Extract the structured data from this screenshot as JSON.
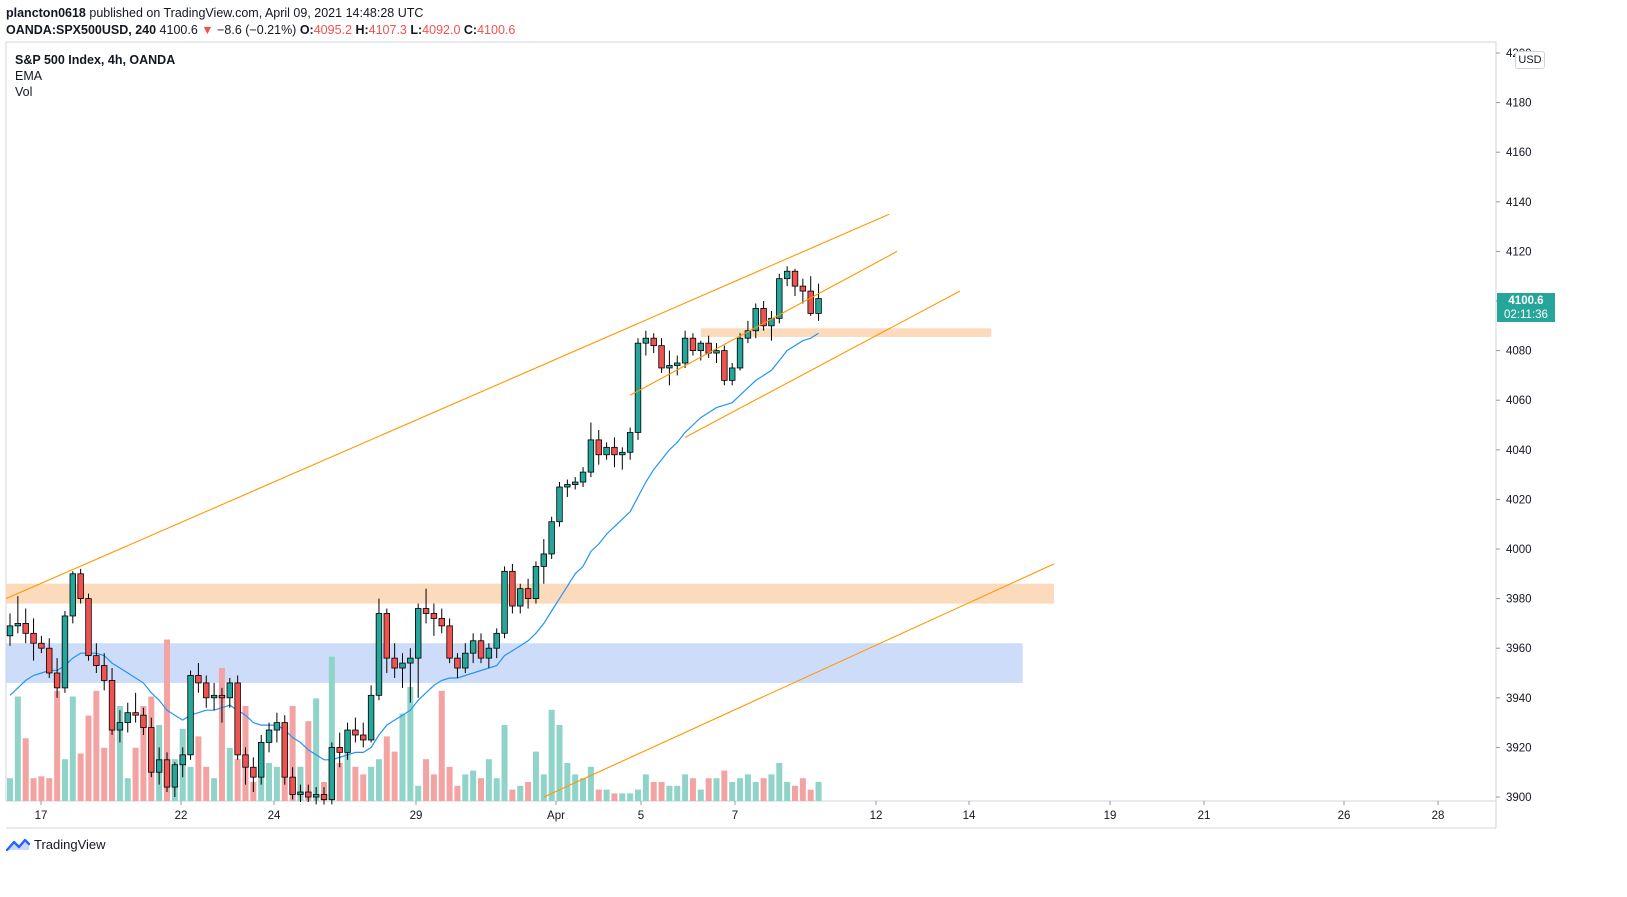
{
  "header": {
    "publisher_line": "plancton0618 published on TradingView.com, April 09, 2021 14:48:28 UTC",
    "publisher": "plancton0618",
    "symbol": "OANDA:SPX500USD, 240",
    "last": "4100.6",
    "change": "−8.6 (−0.21%)",
    "open_label": "O:",
    "open": "4095.2",
    "high_label": "H:",
    "high": "4107.3",
    "low_label": "L:",
    "low": "4092.0",
    "close_label": "C:",
    "close": "4100.6"
  },
  "legend": {
    "title": "S&P 500 Index, 4h, OANDA",
    "ema": "EMA",
    "vol": "Vol"
  },
  "price_axis": {
    "currency": "USD",
    "current_price": "4100.6",
    "countdown": "02:11:36"
  },
  "footer": {
    "brand": "TradingView"
  },
  "colors": {
    "up": "#26a69a",
    "down": "#ef5350",
    "vol_up": "#8fd3c9",
    "vol_down": "#f4a3a3",
    "ema": "#2196f3",
    "trendline": "#ff9800",
    "supply_zone": "#fbd5b1",
    "demand_zone": "#bcd2f7",
    "grid_axis": "#d1d4dc"
  },
  "chart_data": {
    "type": "candlestick",
    "symbol": "OANDA:SPX500USD",
    "timeframe": "240",
    "y_axis": {
      "ticks": [
        3900,
        3920,
        3940,
        3960,
        3980,
        4000,
        4020,
        4040,
        4060,
        4080,
        4100,
        4120,
        4140,
        4160,
        4180,
        4200
      ],
      "range": [
        3898,
        4202
      ],
      "side": "right"
    },
    "x_axis": {
      "tick_labels": [
        "17",
        "22",
        "24",
        "29",
        "Apr",
        "5",
        "7",
        "12",
        "14",
        "19",
        "21",
        "26",
        "28"
      ]
    },
    "candles": [
      {
        "o": 3965,
        "h": 3974,
        "l": 3961,
        "c": 3969
      },
      {
        "o": 3969,
        "h": 3981,
        "l": 3966,
        "c": 3970
      },
      {
        "o": 3970,
        "h": 3976,
        "l": 3962,
        "c": 3966
      },
      {
        "o": 3966,
        "h": 3972,
        "l": 3955,
        "c": 3962
      },
      {
        "o": 3962,
        "h": 3965,
        "l": 3958,
        "c": 3960
      },
      {
        "o": 3960,
        "h": 3964,
        "l": 3948,
        "c": 3950
      },
      {
        "o": 3950,
        "h": 3956,
        "l": 3940,
        "c": 3944
      },
      {
        "o": 3944,
        "h": 3975,
        "l": 3942,
        "c": 3973
      },
      {
        "o": 3973,
        "h": 3991,
        "l": 3970,
        "c": 3990
      },
      {
        "o": 3990,
        "h": 3992,
        "l": 3978,
        "c": 3980
      },
      {
        "o": 3980,
        "h": 3982,
        "l": 3955,
        "c": 3957
      },
      {
        "o": 3957,
        "h": 3962,
        "l": 3950,
        "c": 3953
      },
      {
        "o": 3953,
        "h": 3958,
        "l": 3943,
        "c": 3947
      },
      {
        "o": 3947,
        "h": 3952,
        "l": 3925,
        "c": 3927
      },
      {
        "o": 3927,
        "h": 3935,
        "l": 3922,
        "c": 3930
      },
      {
        "o": 3930,
        "h": 3938,
        "l": 3926,
        "c": 3934
      },
      {
        "o": 3934,
        "h": 3942,
        "l": 3930,
        "c": 3933
      },
      {
        "o": 3933,
        "h": 3936,
        "l": 3925,
        "c": 3928
      },
      {
        "o": 3928,
        "h": 3932,
        "l": 3908,
        "c": 3910
      },
      {
        "o": 3910,
        "h": 3920,
        "l": 3905,
        "c": 3915
      },
      {
        "o": 3915,
        "h": 3918,
        "l": 3902,
        "c": 3904
      },
      {
        "o": 3904,
        "h": 3914,
        "l": 3900,
        "c": 3913
      },
      {
        "o": 3913,
        "h": 3920,
        "l": 3908,
        "c": 3917
      },
      {
        "o": 3917,
        "h": 3951,
        "l": 3915,
        "c": 3949
      },
      {
        "o": 3949,
        "h": 3954,
        "l": 3942,
        "c": 3946
      },
      {
        "o": 3946,
        "h": 3949,
        "l": 3936,
        "c": 3940
      },
      {
        "o": 3940,
        "h": 3946,
        "l": 3935,
        "c": 3941
      },
      {
        "o": 3941,
        "h": 3944,
        "l": 3930,
        "c": 3940
      },
      {
        "o": 3940,
        "h": 3948,
        "l": 3936,
        "c": 3946
      },
      {
        "o": 3946,
        "h": 3949,
        "l": 3915,
        "c": 3917
      },
      {
        "o": 3917,
        "h": 3920,
        "l": 3905,
        "c": 3912
      },
      {
        "o": 3912,
        "h": 3916,
        "l": 3902,
        "c": 3908
      },
      {
        "o": 3908,
        "h": 3925,
        "l": 3905,
        "c": 3922
      },
      {
        "o": 3922,
        "h": 3930,
        "l": 3918,
        "c": 3927
      },
      {
        "o": 3927,
        "h": 3934,
        "l": 3922,
        "c": 3930
      },
      {
        "o": 3930,
        "h": 3933,
        "l": 3905,
        "c": 3908
      },
      {
        "o": 3908,
        "h": 3912,
        "l": 3899,
        "c": 3901
      },
      {
        "o": 3901,
        "h": 3905,
        "l": 3898,
        "c": 3902
      },
      {
        "o": 3902,
        "h": 3905,
        "l": 3898,
        "c": 3900
      },
      {
        "o": 3900,
        "h": 3904,
        "l": 3897,
        "c": 3901
      },
      {
        "o": 3901,
        "h": 3904,
        "l": 3897,
        "c": 3899
      },
      {
        "o": 3899,
        "h": 3922,
        "l": 3897,
        "c": 3920
      },
      {
        "o": 3920,
        "h": 3926,
        "l": 3912,
        "c": 3918
      },
      {
        "o": 3918,
        "h": 3930,
        "l": 3915,
        "c": 3927
      },
      {
        "o": 3927,
        "h": 3932,
        "l": 3922,
        "c": 3925
      },
      {
        "o": 3925,
        "h": 3930,
        "l": 3920,
        "c": 3923
      },
      {
        "o": 3923,
        "h": 3945,
        "l": 3922,
        "c": 3941
      },
      {
        "o": 3941,
        "h": 3980,
        "l": 3939,
        "c": 3974
      },
      {
        "o": 3974,
        "h": 3976,
        "l": 3950,
        "c": 3956
      },
      {
        "o": 3956,
        "h": 3962,
        "l": 3948,
        "c": 3952
      },
      {
        "o": 3952,
        "h": 3958,
        "l": 3944,
        "c": 3954
      },
      {
        "o": 3954,
        "h": 3960,
        "l": 3938,
        "c": 3956
      },
      {
        "o": 3956,
        "h": 3978,
        "l": 3940,
        "c": 3976
      },
      {
        "o": 3976,
        "h": 3984,
        "l": 3970,
        "c": 3974
      },
      {
        "o": 3974,
        "h": 3978,
        "l": 3965,
        "c": 3972
      },
      {
        "o": 3972,
        "h": 3976,
        "l": 3966,
        "c": 3969
      },
      {
        "o": 3969,
        "h": 3972,
        "l": 3954,
        "c": 3956
      },
      {
        "o": 3956,
        "h": 3958,
        "l": 3948,
        "c": 3952
      },
      {
        "o": 3952,
        "h": 3962,
        "l": 3950,
        "c": 3958
      },
      {
        "o": 3958,
        "h": 3966,
        "l": 3954,
        "c": 3963
      },
      {
        "o": 3963,
        "h": 3966,
        "l": 3954,
        "c": 3956
      },
      {
        "o": 3956,
        "h": 3962,
        "l": 3952,
        "c": 3960
      },
      {
        "o": 3960,
        "h": 3968,
        "l": 3956,
        "c": 3966
      },
      {
        "o": 3966,
        "h": 3993,
        "l": 3964,
        "c": 3991
      },
      {
        "o": 3991,
        "h": 3994,
        "l": 3974,
        "c": 3977
      },
      {
        "o": 3977,
        "h": 3986,
        "l": 3974,
        "c": 3984
      },
      {
        "o": 3984,
        "h": 3988,
        "l": 3976,
        "c": 3980
      },
      {
        "o": 3980,
        "h": 3995,
        "l": 3978,
        "c": 3993
      },
      {
        "o": 3993,
        "h": 4004,
        "l": 3986,
        "c": 3998
      },
      {
        "o": 3998,
        "h": 4013,
        "l": 3996,
        "c": 4011
      },
      {
        "o": 4011,
        "h": 4027,
        "l": 4009,
        "c": 4025
      },
      {
        "o": 4025,
        "h": 4028,
        "l": 4021,
        "c": 4026
      },
      {
        "o": 4026,
        "h": 4029,
        "l": 4024,
        "c": 4027
      },
      {
        "o": 4027,
        "h": 4033,
        "l": 4025,
        "c": 4031
      },
      {
        "o": 4031,
        "h": 4051,
        "l": 4029,
        "c": 4044
      },
      {
        "o": 4044,
        "h": 4048,
        "l": 4034,
        "c": 4038
      },
      {
        "o": 4038,
        "h": 4043,
        "l": 4036,
        "c": 4041
      },
      {
        "o": 4041,
        "h": 4045,
        "l": 4033,
        "c": 4038
      },
      {
        "o": 4038,
        "h": 4041,
        "l": 4032,
        "c": 4039
      },
      {
        "o": 4039,
        "h": 4049,
        "l": 4036,
        "c": 4047
      },
      {
        "o": 4047,
        "h": 4085,
        "l": 4044,
        "c": 4083
      },
      {
        "o": 4083,
        "h": 4088,
        "l": 4078,
        "c": 4085
      },
      {
        "o": 4085,
        "h": 4087,
        "l": 4079,
        "c": 4082
      },
      {
        "o": 4082,
        "h": 4085,
        "l": 4071,
        "c": 4073
      },
      {
        "o": 4073,
        "h": 4080,
        "l": 4066,
        "c": 4074
      },
      {
        "o": 4074,
        "h": 4078,
        "l": 4070,
        "c": 4075
      },
      {
        "o": 4075,
        "h": 4088,
        "l": 4073,
        "c": 4085
      },
      {
        "o": 4085,
        "h": 4087,
        "l": 4078,
        "c": 4080
      },
      {
        "o": 4080,
        "h": 4084,
        "l": 4076,
        "c": 4083
      },
      {
        "o": 4083,
        "h": 4086,
        "l": 4077,
        "c": 4079
      },
      {
        "o": 4079,
        "h": 4083,
        "l": 4075,
        "c": 4080
      },
      {
        "o": 4080,
        "h": 4082,
        "l": 4066,
        "c": 4068
      },
      {
        "o": 4068,
        "h": 4075,
        "l": 4066,
        "c": 4073
      },
      {
        "o": 4073,
        "h": 4087,
        "l": 4072,
        "c": 4085
      },
      {
        "o": 4085,
        "h": 4092,
        "l": 4083,
        "c": 4088
      },
      {
        "o": 4088,
        "h": 4099,
        "l": 4085,
        "c": 4097
      },
      {
        "o": 4097,
        "h": 4100,
        "l": 4088,
        "c": 4090
      },
      {
        "o": 4090,
        "h": 4096,
        "l": 4084,
        "c": 4093
      },
      {
        "o": 4093,
        "h": 4111,
        "l": 4091,
        "c": 4109
      },
      {
        "o": 4109,
        "h": 4114,
        "l": 4106,
        "c": 4112
      },
      {
        "o": 4112,
        "h": 4113,
        "l": 4102,
        "c": 4106
      },
      {
        "o": 4106,
        "h": 4109,
        "l": 4099,
        "c": 4104
      },
      {
        "o": 4104,
        "h": 4110,
        "l": 4094,
        "c": 4095
      },
      {
        "o": 4095,
        "h": 4107,
        "l": 4092,
        "c": 4101
      }
    ],
    "volume_relative": [
      0.12,
      0.55,
      0.33,
      0.12,
      0.13,
      0.12,
      0.58,
      0.22,
      0.55,
      0.25,
      0.45,
      0.58,
      0.28,
      0.55,
      0.5,
      0.12,
      0.28,
      0.5,
      0.55,
      0.4,
      0.85,
      0.22,
      0.38,
      0.18,
      0.34,
      0.18,
      0.12,
      0.7,
      0.28,
      0.22,
      0.5,
      0.1,
      0.22,
      0.2,
      0.18,
      0.16,
      0.5,
      0.18,
      0.42,
      0.54,
      0.1,
      0.76,
      0.2,
      0.28,
      0.18,
      0.14,
      0.18,
      0.22,
      0.34,
      0.26,
      0.46,
      0.6,
      0.08,
      0.22,
      0.14,
      0.58,
      0.18,
      0.08,
      0.14,
      0.16,
      0.12,
      0.22,
      0.12,
      0.4,
      0.06,
      0.08,
      0.1,
      0.26,
      0.14,
      0.48,
      0.4,
      0.2,
      0.14,
      0.12,
      0.18,
      0.06,
      0.06,
      0.04,
      0.04,
      0.04,
      0.06,
      0.14,
      0.1,
      0.1,
      0.08,
      0.08,
      0.14,
      0.12,
      0.06,
      0.12,
      0.12,
      0.16,
      0.1,
      0.12,
      0.14,
      0.1,
      0.12,
      0.14,
      0.2,
      0.1,
      0.08,
      0.12,
      0.06,
      0.1,
      0.08
    ],
    "ema_series": [
      3941,
      3944,
      3947,
      3949,
      3950,
      3951,
      3951,
      3953,
      3956,
      3958,
      3958,
      3958,
      3957,
      3954,
      3952,
      3950,
      3948,
      3946,
      3942,
      3939,
      3935,
      3933,
      3931,
      3933,
      3934,
      3935,
      3935,
      3936,
      3937,
      3935,
      3933,
      3930,
      3929,
      3929,
      3929,
      3927,
      3924,
      3922,
      3919,
      3917,
      3915,
      3915,
      3916,
      3917,
      3918,
      3918,
      3920,
      3925,
      3929,
      3931,
      3933,
      3935,
      3939,
      3942,
      3945,
      3947,
      3948,
      3948,
      3949,
      3950,
      3951,
      3952,
      3953,
      3957,
      3959,
      3961,
      3963,
      3966,
      3970,
      3975,
      3980,
      3985,
      3990,
      3993,
      3999,
      4002,
      4006,
      4009,
      4012,
      4015,
      4021,
      4027,
      4032,
      4036,
      4040,
      4043,
      4047,
      4050,
      4053,
      4055,
      4057,
      4058,
      4059,
      4062,
      4065,
      4068,
      4070,
      4072,
      4076,
      4080,
      4082,
      4084,
      4085,
      4087
    ],
    "trendlines": [
      {
        "from": [
          0,
          3980
        ],
        "to": [
          112,
          4135
        ]
      },
      {
        "from": [
          79,
          4062
        ],
        "to": [
          113,
          4120
        ]
      },
      {
        "from": [
          86,
          4045
        ],
        "to": [
          121,
          4104
        ]
      },
      {
        "from": [
          68,
          3900
        ],
        "to": [
          133,
          3994
        ]
      }
    ],
    "zones": [
      {
        "kind": "resistance",
        "from": [
          88,
          4089
        ],
        "to": [
          125,
          4085.5
        ]
      },
      {
        "kind": "support",
        "from": [
          0,
          3986
        ],
        "to": [
          133,
          3978
        ]
      },
      {
        "kind": "demand",
        "from": [
          0,
          3962
        ],
        "to": [
          129,
          3946
        ]
      }
    ]
  }
}
